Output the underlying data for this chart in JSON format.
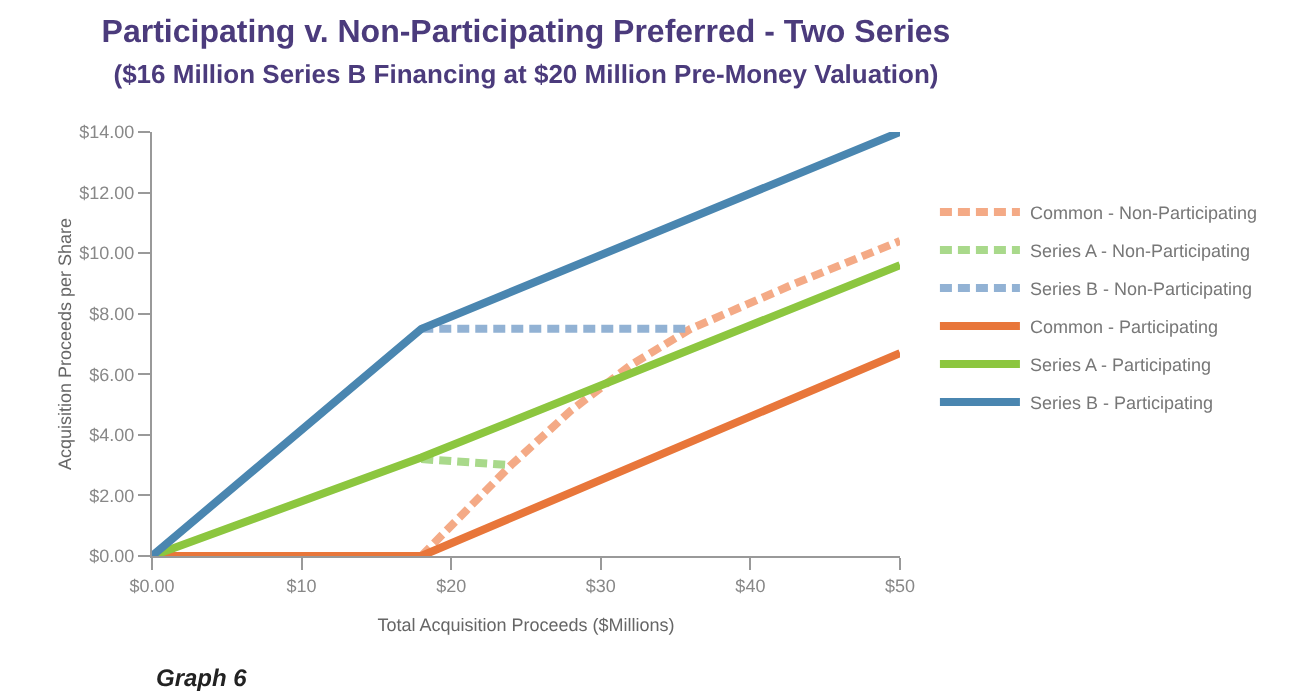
{
  "chart_data": {
    "type": "line",
    "title": "Participating v. Non-Participating Preferred - Two Series",
    "subtitle": "($16 Million Series B Financing at $20 Million Pre-Money Valuation)",
    "xlabel": "Total Acquisition Proceeds ($Millions)",
    "ylabel": "Acquisition Proceeds per Share",
    "annotations": [
      "Graph 6"
    ],
    "xlim": [
      0,
      50
    ],
    "xticks": [
      {
        "value": 0,
        "label": "$0.00"
      },
      {
        "value": 10,
        "label": "$10"
      },
      {
        "value": 20,
        "label": "$20"
      },
      {
        "value": 30,
        "label": "$30"
      },
      {
        "value": 40,
        "label": "$40"
      },
      {
        "value": 50,
        "label": "$50"
      }
    ],
    "ylim": [
      0,
      14
    ],
    "yticks": [
      {
        "value": 0,
        "label": "$0.00"
      },
      {
        "value": 2,
        "label": "$2.00"
      },
      {
        "value": 4,
        "label": "$4.00"
      },
      {
        "value": 6,
        "label": "$6.00"
      },
      {
        "value": 8,
        "label": "$8.00"
      },
      {
        "value": 10,
        "label": "$10.00"
      },
      {
        "value": 12,
        "label": "$12.00"
      },
      {
        "value": 14,
        "label": "$14.00"
      }
    ],
    "grid": false,
    "legend": "right",
    "marker": "none",
    "series": [
      {
        "name": "Common - Non-Participating",
        "color": "#f4aa86",
        "line_style": "dashed",
        "x": [
          18,
          21,
          24,
          28,
          32,
          36,
          43,
          50
        ],
        "values": [
          0,
          1.5,
          3,
          4.8,
          6.3,
          7.5,
          9,
          10.4
        ]
      },
      {
        "name": "Series A - Non-Participating",
        "color": "#a9d98b",
        "line_style": "dashed",
        "x": [
          18,
          24
        ],
        "values": [
          3.2,
          3
        ]
      },
      {
        "name": "Series B - Non-Participating",
        "color": "#92b2d4",
        "line_style": "dashed",
        "x": [
          18,
          36
        ],
        "values": [
          7.5,
          7.5
        ]
      },
      {
        "name": "Common - Participating",
        "color": "#e8763a",
        "line_style": "solid",
        "x": [
          0,
          18,
          50
        ],
        "values": [
          0,
          0,
          6.7
        ]
      },
      {
        "name": "Series A - Participating",
        "color": "#8cc63f",
        "line_style": "solid",
        "x": [
          0,
          18,
          50
        ],
        "values": [
          0,
          3.25,
          9.6
        ]
      },
      {
        "name": "Series B - Participating",
        "color": "#4a86b0",
        "line_style": "solid",
        "x": [
          0,
          18,
          50
        ],
        "values": [
          0,
          7.5,
          14
        ]
      }
    ]
  }
}
